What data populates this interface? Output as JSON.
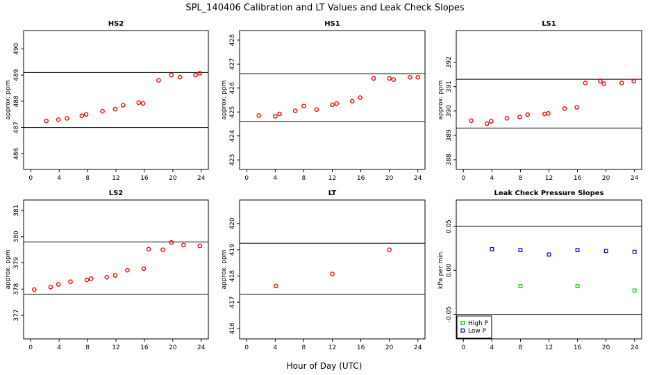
{
  "figure": {
    "title": "SPL_140406  Calibration and LT Values and Leak Check Slopes",
    "xlabel": "Hour of Day (UTC)"
  },
  "chart_data": [
    {
      "type": "scatter",
      "title": "HS2",
      "ylabel": "approx. ppm",
      "xlim": [
        -1,
        25
      ],
      "ylim": [
        485.4,
        490.7
      ],
      "xticks": [
        "0",
        "4",
        "8",
        "12",
        "16",
        "20",
        "24"
      ],
      "yticks": [
        "486",
        "487",
        "488",
        "489",
        "490"
      ],
      "hlines": [
        487.0,
        489.1
      ],
      "points": [
        {
          "x": 2.2,
          "y": 487.25
        },
        {
          "x": 3.9,
          "y": 487.3
        },
        {
          "x": 5.1,
          "y": 487.35
        },
        {
          "x": 7.2,
          "y": 487.45
        },
        {
          "x": 7.8,
          "y": 487.5
        },
        {
          "x": 10.1,
          "y": 487.62
        },
        {
          "x": 11.9,
          "y": 487.7
        },
        {
          "x": 13.0,
          "y": 487.85
        },
        {
          "x": 15.2,
          "y": 487.95
        },
        {
          "x": 15.8,
          "y": 487.92
        },
        {
          "x": 18.0,
          "y": 488.8
        },
        {
          "x": 19.8,
          "y": 489.0
        },
        {
          "x": 21.0,
          "y": 488.92
        },
        {
          "x": 23.2,
          "y": 489.0
        },
        {
          "x": 23.8,
          "y": 489.07
        }
      ],
      "series_color": "#ff0000"
    },
    {
      "type": "scatter",
      "title": "HS1",
      "ylabel": "approx. ppm",
      "xlim": [
        -1,
        25
      ],
      "ylim": [
        422.6,
        428.4
      ],
      "xticks": [
        "0",
        "4",
        "8",
        "12",
        "16",
        "20",
        "24"
      ],
      "yticks": [
        "423",
        "424",
        "425",
        "426",
        "427",
        "428"
      ],
      "hlines": [
        424.6,
        426.6
      ],
      "points": [
        {
          "x": 1.7,
          "y": 424.85
        },
        {
          "x": 4.0,
          "y": 424.82
        },
        {
          "x": 4.6,
          "y": 424.92
        },
        {
          "x": 6.8,
          "y": 425.05
        },
        {
          "x": 8.0,
          "y": 425.25
        },
        {
          "x": 9.8,
          "y": 425.1
        },
        {
          "x": 12.0,
          "y": 425.3
        },
        {
          "x": 12.6,
          "y": 425.35
        },
        {
          "x": 14.8,
          "y": 425.45
        },
        {
          "x": 15.9,
          "y": 425.6
        },
        {
          "x": 17.8,
          "y": 426.4
        },
        {
          "x": 20.0,
          "y": 426.4
        },
        {
          "x": 20.6,
          "y": 426.35
        },
        {
          "x": 22.9,
          "y": 426.45
        },
        {
          "x": 24.0,
          "y": 426.45
        }
      ],
      "series_color": "#ff0000"
    },
    {
      "type": "scatter",
      "title": "LS1",
      "ylabel": "approx. ppm",
      "xlim": [
        -1,
        25
      ],
      "ylim": [
        387.6,
        393.3
      ],
      "xticks": [
        "0",
        "4",
        "8",
        "12",
        "16",
        "20",
        "24"
      ],
      "yticks": [
        "388",
        "389",
        "390",
        "391",
        "392"
      ],
      "hlines": [
        389.3,
        391.3
      ],
      "points": [
        {
          "x": 1.1,
          "y": 389.6
        },
        {
          "x": 3.3,
          "y": 389.48
        },
        {
          "x": 3.9,
          "y": 389.58
        },
        {
          "x": 6.1,
          "y": 389.7
        },
        {
          "x": 7.9,
          "y": 389.75
        },
        {
          "x": 9.0,
          "y": 389.85
        },
        {
          "x": 11.4,
          "y": 389.88
        },
        {
          "x": 11.9,
          "y": 389.9
        },
        {
          "x": 14.2,
          "y": 390.1
        },
        {
          "x": 15.9,
          "y": 390.15
        },
        {
          "x": 17.1,
          "y": 391.15
        },
        {
          "x": 19.2,
          "y": 391.22
        },
        {
          "x": 19.7,
          "y": 391.12
        },
        {
          "x": 22.2,
          "y": 391.15
        },
        {
          "x": 23.9,
          "y": 391.22
        }
      ],
      "series_color": "#ff0000"
    },
    {
      "type": "scatter",
      "title": "LS2",
      "ylabel": "approx. ppm",
      "xlim": [
        -1,
        25
      ],
      "ylim": [
        376.1,
        381.4
      ],
      "xticks": [
        "0",
        "4",
        "8",
        "12",
        "16",
        "20",
        "24"
      ],
      "yticks": [
        "377",
        "378",
        "379",
        "380",
        "381"
      ],
      "hlines": [
        377.8,
        379.8
      ],
      "points": [
        {
          "x": 0.5,
          "y": 377.98
        },
        {
          "x": 2.8,
          "y": 378.08
        },
        {
          "x": 3.9,
          "y": 378.18
        },
        {
          "x": 5.6,
          "y": 378.28
        },
        {
          "x": 7.9,
          "y": 378.35
        },
        {
          "x": 8.5,
          "y": 378.4
        },
        {
          "x": 10.7,
          "y": 378.45
        },
        {
          "x": 11.9,
          "y": 378.52
        },
        {
          "x": 13.6,
          "y": 378.72
        },
        {
          "x": 15.9,
          "y": 378.78
        },
        {
          "x": 16.6,
          "y": 379.52
        },
        {
          "x": 18.6,
          "y": 379.5
        },
        {
          "x": 19.8,
          "y": 379.78
        },
        {
          "x": 21.5,
          "y": 379.68
        },
        {
          "x": 23.8,
          "y": 379.65
        }
      ],
      "series_color": "#ff0000"
    },
    {
      "type": "scatter",
      "title": "LT",
      "ylabel": "approx. ppm",
      "xlim": [
        -1,
        25
      ],
      "ylim": [
        415.6,
        420.9
      ],
      "xticks": [
        "0",
        "4",
        "8",
        "12",
        "16",
        "20",
        "24"
      ],
      "yticks": [
        "416",
        "417",
        "418",
        "419",
        "420"
      ],
      "hlines": [
        417.3,
        419.25
      ],
      "points": [
        {
          "x": 4.1,
          "y": 417.62
        },
        {
          "x": 12.0,
          "y": 418.08
        },
        {
          "x": 20.0,
          "y": 419.0
        }
      ],
      "series_color": "#ff0000"
    },
    {
      "type": "scatter",
      "title": "Leak Check Pressure Slopes",
      "ylabel": "kPa per min.",
      "xlim": [
        -1,
        25
      ],
      "ylim": [
        -0.078,
        0.08
      ],
      "xticks": [
        "0",
        "4",
        "8",
        "12",
        "16",
        "20",
        "24"
      ],
      "yticks": [
        "-0.05",
        "0.00",
        "0.05"
      ],
      "ytick_values": [
        -0.05,
        0.0,
        0.05
      ],
      "hlines": [
        -0.05,
        0.05
      ],
      "series": [
        {
          "name": "High P",
          "color": "#00cc00",
          "points": [
            {
              "x": 8.0,
              "y": -0.018
            },
            {
              "x": 16.0,
              "y": -0.018
            },
            {
              "x": 24.0,
              "y": -0.023
            }
          ]
        },
        {
          "name": "Low P",
          "color": "#0000cc",
          "points": [
            {
              "x": 4.0,
              "y": 0.024
            },
            {
              "x": 8.0,
              "y": 0.023
            },
            {
              "x": 12.0,
              "y": 0.018
            },
            {
              "x": 16.0,
              "y": 0.023
            },
            {
              "x": 20.0,
              "y": 0.022
            },
            {
              "x": 24.0,
              "y": 0.021
            }
          ]
        }
      ],
      "legend": "bottom-left"
    }
  ]
}
